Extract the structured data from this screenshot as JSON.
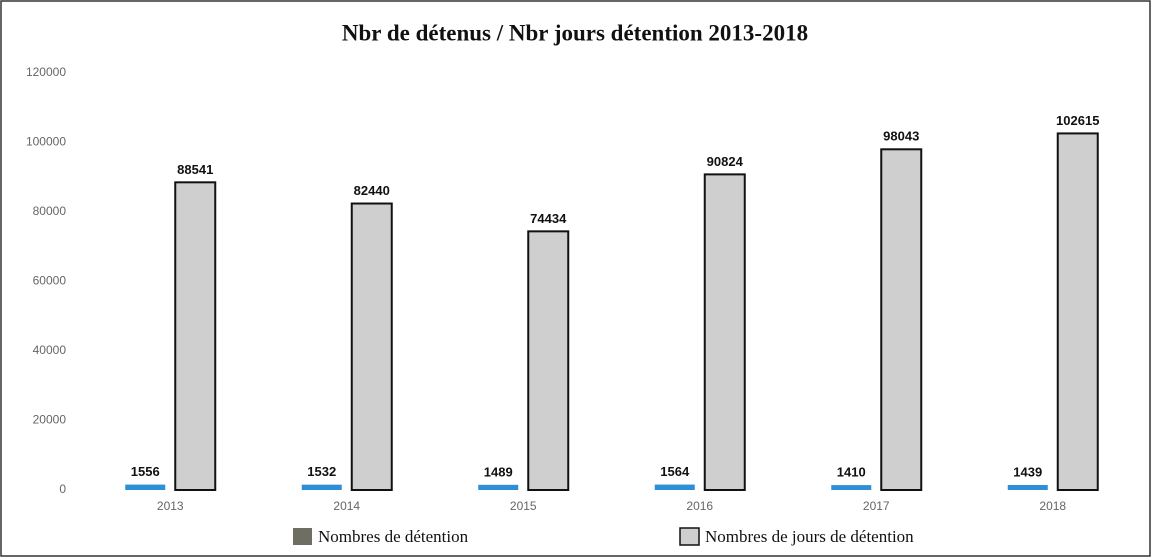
{
  "chart_data": {
    "type": "bar",
    "title": "Nbr de détenus / Nbr jours détention 2013-2018",
    "categories": [
      "2013",
      "2014",
      "2015",
      "2016",
      "2017",
      "2018"
    ],
    "series": [
      {
        "name": "Nombres de détention",
        "color": "#2f8fd6",
        "legend_color": "#6e6e62",
        "values": [
          1556,
          1532,
          1489,
          1564,
          1410,
          1439
        ]
      },
      {
        "name": "Nombres de jours de détention",
        "color": "#cfcfcf",
        "legend_color": "#cfcfcf",
        "values": [
          88541,
          82440,
          74434,
          90824,
          98043,
          102615
        ]
      }
    ],
    "ylim": [
      0,
      120000
    ],
    "yticks": [
      0,
      20000,
      40000,
      60000,
      80000,
      100000,
      120000
    ],
    "grid": false
  }
}
